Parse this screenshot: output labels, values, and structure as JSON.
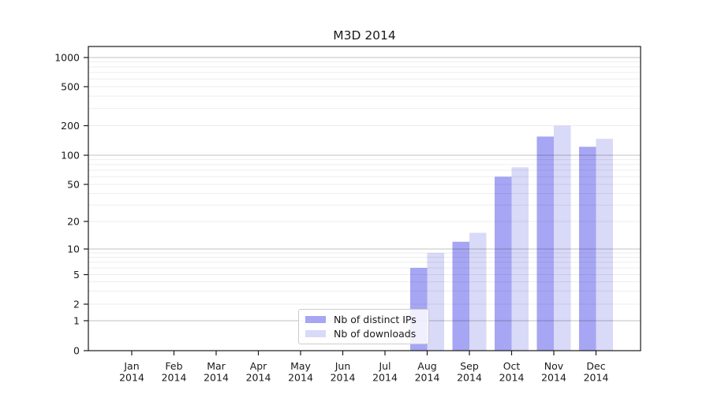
{
  "chart_data": {
    "type": "bar",
    "title": "M3D 2014",
    "year": "2014",
    "categories": [
      "Jan",
      "Feb",
      "Mar",
      "Apr",
      "May",
      "Jun",
      "Jul",
      "Aug",
      "Sep",
      "Oct",
      "Nov",
      "Dec"
    ],
    "series": [
      {
        "name": "Nb of distinct IPs",
        "color": "#a6a6f4",
        "values": [
          0,
          0,
          0,
          0,
          0,
          0,
          0,
          6,
          12,
          60,
          155,
          122
        ]
      },
      {
        "name": "Nb of downloads",
        "color": "#d9d9f8",
        "values": [
          0,
          0,
          0,
          0,
          0,
          0,
          0,
          9,
          15,
          75,
          200,
          147
        ]
      }
    ],
    "y_ticks": [
      0,
      1,
      2,
      5,
      10,
      20,
      50,
      100,
      200,
      500,
      1000
    ],
    "y_scale": "log-like",
    "ylim": [
      0,
      1300
    ],
    "grid": "horizontal major and minor gridlines",
    "legend_position": "bottom-center inside plot"
  }
}
